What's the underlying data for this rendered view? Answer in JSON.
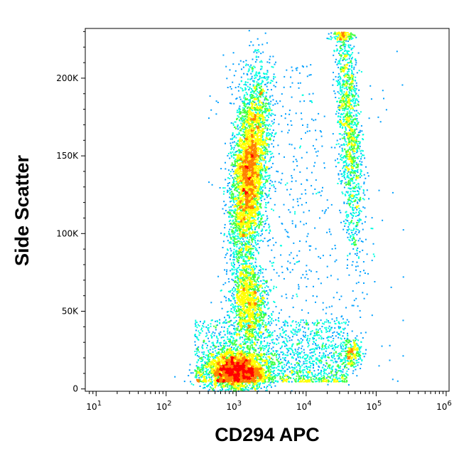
{
  "chart_data": {
    "type": "scatter",
    "subtype": "flow-cytometry-density-dot-plot",
    "xlabel": "CD294 APC",
    "ylabel": "Side Scatter",
    "x_scale": "log",
    "xlim": [
      7,
      1100000
    ],
    "ylim": [
      -1500,
      232000
    ],
    "x_ticks": [
      {
        "value": 10,
        "base": "10",
        "exp": "1"
      },
      {
        "value": 100,
        "base": "10",
        "exp": "2"
      },
      {
        "value": 1000,
        "base": "10",
        "exp": "3"
      },
      {
        "value": 10000,
        "base": "10",
        "exp": "4"
      },
      {
        "value": 100000,
        "base": "10",
        "exp": "5"
      },
      {
        "value": 1000000,
        "base": "10",
        "exp": "6"
      }
    ],
    "y_ticks": [
      {
        "value": 0,
        "label": "0"
      },
      {
        "value": 50000,
        "label": "50K"
      },
      {
        "value": 100000,
        "label": "100K"
      },
      {
        "value": 150000,
        "label": "150K"
      },
      {
        "value": 200000,
        "label": "200K"
      }
    ],
    "grid": false,
    "color_scale": [
      "#0000ff",
      "#00a0ff",
      "#00ffe0",
      "#40ff40",
      "#ffff00",
      "#ff8000",
      "#ff0000"
    ],
    "populations": [
      {
        "x_center": 1000,
        "y_center": 12000,
        "n": 2600
      },
      {
        "x_center": 1500,
        "y_center": 140000,
        "n": 4200
      },
      {
        "x_center": 1500,
        "y_center": 55000,
        "n": 1300
      },
      {
        "x_center": 40000,
        "y_center": 170000,
        "n": 1500
      },
      {
        "x_center": 45000,
        "y_center": 24000,
        "n": 260
      }
    ]
  }
}
